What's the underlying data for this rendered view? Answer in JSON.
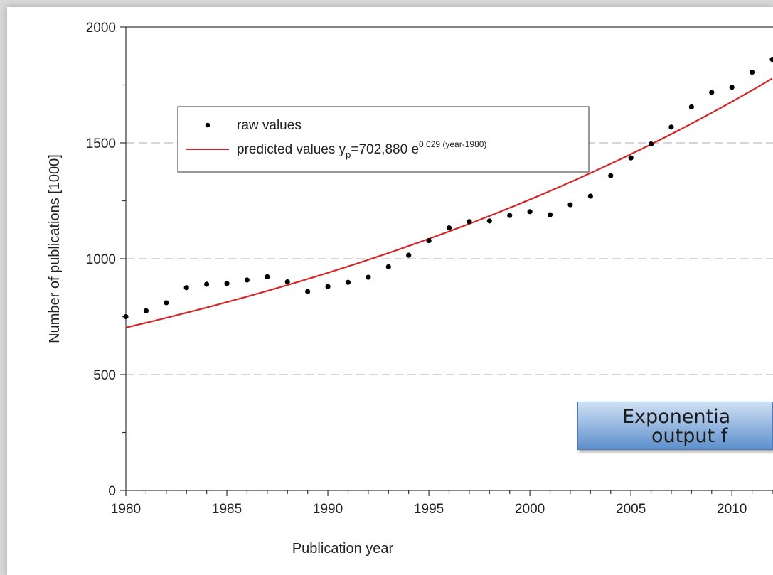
{
  "chart_data": {
    "type": "scatter",
    "xlabel": "Publication year",
    "ylabel": "Number of publications [1000]",
    "xlim": [
      1980,
      2012
    ],
    "ylim": [
      0,
      2000
    ],
    "x_ticks": [
      1980,
      1985,
      1990,
      1995,
      2000,
      2005,
      2010
    ],
    "y_ticks": [
      0,
      500,
      1000,
      1500,
      2000
    ],
    "grid": "horizontal dashed",
    "legend_position": "top-left",
    "series": [
      {
        "name": "raw values",
        "kind": "points",
        "color": "#000000",
        "x": [
          1980,
          1981,
          1982,
          1983,
          1984,
          1985,
          1986,
          1987,
          1988,
          1989,
          1990,
          1991,
          1992,
          1993,
          1994,
          1995,
          1996,
          1997,
          1998,
          1999,
          2000,
          2001,
          2002,
          2003,
          2004,
          2005,
          2006,
          2007,
          2008,
          2009,
          2010,
          2011,
          2012
        ],
        "y": [
          750,
          775,
          810,
          875,
          890,
          893,
          908,
          922,
          900,
          858,
          880,
          898,
          920,
          965,
          1015,
          1078,
          1133,
          1160,
          1163,
          1187,
          1203,
          1190,
          1233,
          1270,
          1358,
          1435,
          1495,
          1568,
          1655,
          1718,
          1740,
          1805,
          1860
        ]
      },
      {
        "name": "predicted values",
        "kind": "line",
        "color": "#d62728",
        "formula": {
          "a": 702880,
          "b": 0.029,
          "x0": 1980,
          "unit": 1000
        }
      }
    ],
    "legend": {
      "raw_label": "raw values",
      "pred_label_prefix": "predicted values y",
      "pred_sub": "p",
      "pred_label_mid": "=702,880 e",
      "pred_sup": "0.029 (year-1980)"
    }
  },
  "callout": {
    "line1": "Exponentia",
    "line2": "output f"
  }
}
